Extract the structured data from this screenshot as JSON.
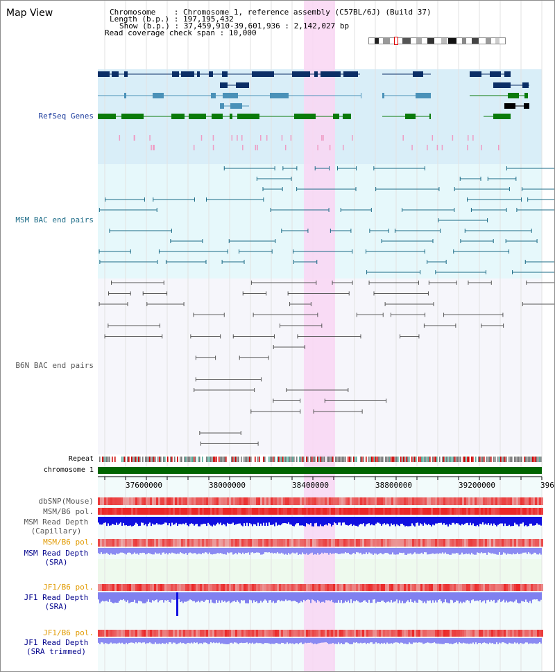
{
  "title": "Map View",
  "info": {
    "chromosome_label": "Chromosome",
    "chromosome_value": "Chromosome 1, reference assembly (C57BL/6J) (Build 37)",
    "length_label": "Length (b.p.)",
    "length_value": "197,195,432",
    "show_label": "Show (b.p.)",
    "show_value": "37,459,910-39,601,936 : 2,142,027 bp",
    "coverage_label": "Read coverage check span",
    "coverage_value": "10,000"
  },
  "tracks": {
    "refseq": "RefSeq Genes",
    "msm_bac": "MSM BAC end pairs",
    "b6n_bac": "B6N BAC end pairs",
    "repeat": "Repeat",
    "chromosome": "chromosome 1",
    "dbsnp": "dbSNP(Mouse)",
    "msm_b6_pol": "MSM/B6 pol.",
    "msm_read_depth": "MSM Read Depth",
    "capillary": "(Capillary)",
    "msm_b6_pol2": "MSM/B6 pol.",
    "msm_read_depth_sra": "MSM Read Depth",
    "sra": "(SRA)",
    "jf1_b6_pol": "JF1/B6 pol.",
    "jf1_read_depth": "JF1 Read Depth",
    "jf1_sra": "(SRA)",
    "jf1_b6_pol2": "JF1/B6 pol.",
    "jf1_read_depth_trim": "JF1 Read Depth",
    "sra_trimmed": "(SRA trimmed)"
  },
  "axis": {
    "ticks": [
      "37600000",
      "38000000",
      "38400000",
      "38800000",
      "39200000",
      "396"
    ]
  },
  "colors": {
    "refseq_bg": "#d9eef8",
    "msm_bg": "#e6f8fb",
    "b6n_bg": "#f6f6fb",
    "highlight": "#f9d6f3",
    "chromosome": "#006400",
    "gene_dark": "#0b2e66",
    "gene_mid": "#4a91b8",
    "gene_green": "#0a7a0a",
    "bac_msm": "#1a6a86",
    "bac_b6n": "#555555"
  }
}
